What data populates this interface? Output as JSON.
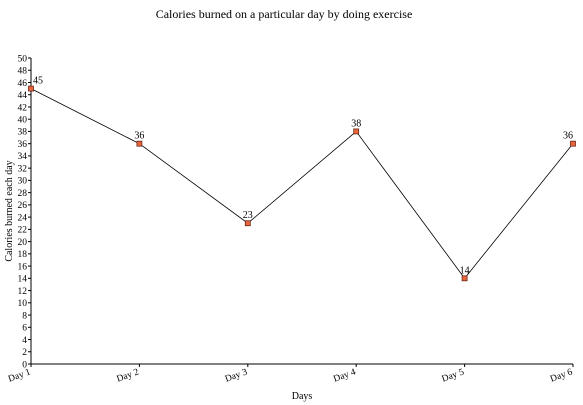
{
  "chart_data": {
    "type": "line",
    "title": "Calories burned on a particular day by doing exercise",
    "xlabel": "Days",
    "ylabel": "Calories burned each day",
    "categories": [
      "Day 1",
      "Day 2",
      "Day 3",
      "Day 4",
      "Day 5",
      "Day 6"
    ],
    "series": [
      {
        "values": [
          45,
          36,
          23,
          38,
          14,
          36
        ]
      }
    ],
    "ylim": [
      0,
      50
    ],
    "ytick_step": 2,
    "grid": false,
    "legend": "none",
    "show_data_labels": true,
    "line_color": "#000000",
    "marker_fill": "#e8643c",
    "marker_stroke": "#6a2a18"
  }
}
